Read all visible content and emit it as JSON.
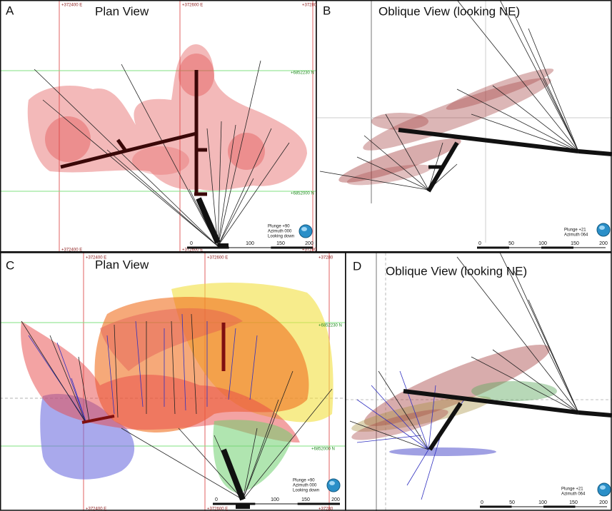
{
  "panels": [
    {
      "letter": "A",
      "title": "Plan View",
      "grid_labels": [
        "+372400 E",
        "+372600 E",
        "+37280",
        "+372400 E",
        "+372600 E",
        "+37280",
        "+6852230 N",
        "+6852000 N"
      ],
      "scale_labels": [
        "0",
        "100",
        "150",
        "200"
      ],
      "orientation": [
        "Plunge +90",
        "Azimuth 000",
        "Looking down"
      ]
    },
    {
      "letter": "B",
      "title": "Oblique View (looking NE)",
      "grid_labels": [],
      "scale_labels": [
        "0",
        "50",
        "100",
        "150",
        "200"
      ],
      "orientation": [
        "Plunge +21",
        "Azimuth 064"
      ]
    },
    {
      "letter": "C",
      "title": "Plan View",
      "grid_labels": [
        "+372400 E",
        "+372600 E",
        "+37280",
        "+372400 E",
        "+372600 E",
        "+37280",
        "+6852230 N",
        "+6852000 N"
      ],
      "scale_labels": [
        "0",
        "100",
        "150",
        "200"
      ],
      "orientation": [
        "Plunge +90",
        "Azimuth 000",
        "Looking down"
      ]
    },
    {
      "letter": "D",
      "title": "Oblique View (looking NE)",
      "grid_labels": [],
      "scale_labels": [
        "0",
        "50",
        "100",
        "150",
        "200"
      ],
      "orientation": [
        "Plunge +21",
        "Azimuth 064"
      ]
    }
  ]
}
